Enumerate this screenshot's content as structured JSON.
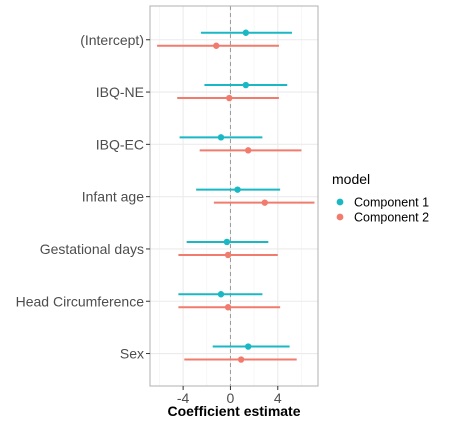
{
  "chart_data": {
    "type": "forest-plot",
    "title": "",
    "xlabel": "Coefficient estimate",
    "ylabel": "",
    "xlim": [
      -6.8,
      7.4
    ],
    "xticks": [
      -4,
      0,
      4
    ],
    "xtick_labels": [
      "-4",
      "0",
      "4"
    ],
    "reference_line_x": 0,
    "grid": true,
    "categories": [
      "(Intercept)",
      "IBQ-NE",
      "IBQ-EC",
      "Infant age",
      "Gestational days",
      "Head Circumference",
      "Sex"
    ],
    "legend": {
      "title": "model",
      "position": "right"
    },
    "series": [
      {
        "name": "Component 1",
        "color": "#1ab8c4",
        "points": [
          {
            "category": "(Intercept)",
            "estimate": 1.3,
            "lower": -2.5,
            "upper": 5.2
          },
          {
            "category": "IBQ-NE",
            "estimate": 1.3,
            "lower": -2.2,
            "upper": 4.8
          },
          {
            "category": "IBQ-EC",
            "estimate": -0.8,
            "lower": -4.3,
            "upper": 2.7
          },
          {
            "category": "Infant age",
            "estimate": 0.6,
            "lower": -2.9,
            "upper": 4.2
          },
          {
            "category": "Gestational days",
            "estimate": -0.3,
            "lower": -3.7,
            "upper": 3.2
          },
          {
            "category": "Head Circumference",
            "estimate": -0.8,
            "lower": -4.4,
            "upper": 2.7
          },
          {
            "category": "Sex",
            "estimate": 1.5,
            "lower": -1.5,
            "upper": 5.0
          }
        ]
      },
      {
        "name": "Component 2",
        "color": "#f17c6e",
        "points": [
          {
            "category": "(Intercept)",
            "estimate": -1.2,
            "lower": -6.2,
            "upper": 4.1
          },
          {
            "category": "IBQ-NE",
            "estimate": -0.1,
            "lower": -4.5,
            "upper": 4.1
          },
          {
            "category": "IBQ-EC",
            "estimate": 1.5,
            "lower": -2.6,
            "upper": 6.0
          },
          {
            "category": "Infant age",
            "estimate": 2.9,
            "lower": -1.4,
            "upper": 7.1
          },
          {
            "category": "Gestational days",
            "estimate": -0.2,
            "lower": -4.4,
            "upper": 4.0
          },
          {
            "category": "Head Circumference",
            "estimate": -0.2,
            "lower": -4.4,
            "upper": 4.2
          },
          {
            "category": "Sex",
            "estimate": 0.9,
            "lower": -3.9,
            "upper": 5.6
          }
        ]
      }
    ]
  }
}
